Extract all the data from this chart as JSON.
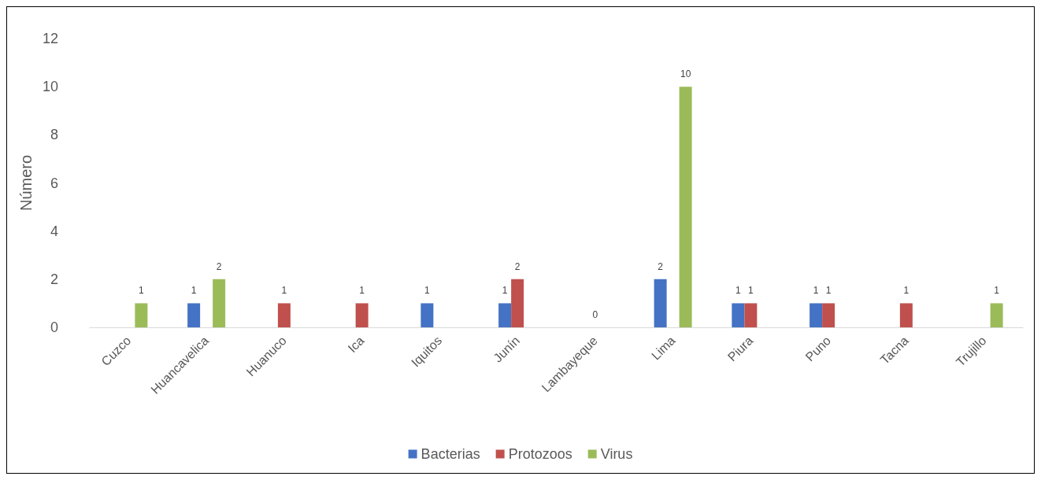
{
  "chart_data": {
    "type": "bar",
    "ylabel": "Número",
    "categories": [
      "Cuzco",
      "Huancavelica",
      "Huanuco",
      "Ica",
      "Iquitos",
      "Junín",
      "Lambayeque",
      "Lima",
      "Piura",
      "Puno",
      "Tacna",
      "Trujillo"
    ],
    "series": [
      {
        "name": "Bacterias",
        "color": "#4472c4",
        "values": [
          null,
          1,
          null,
          null,
          1,
          1,
          null,
          2,
          1,
          1,
          null,
          null
        ],
        "value_labels": [
          null,
          "1",
          null,
          null,
          "1",
          "1",
          null,
          "2",
          "1",
          "1",
          null,
          null
        ]
      },
      {
        "name": "Protozoos",
        "color": "#c0504d",
        "values": [
          null,
          null,
          1,
          1,
          null,
          2,
          0,
          null,
          1,
          1,
          1,
          null
        ],
        "value_labels": [
          null,
          null,
          "1",
          "1",
          null,
          "2",
          "0",
          null,
          "1",
          "1",
          "1",
          null
        ]
      },
      {
        "name": "Virus",
        "color": "#9bbb59",
        "values": [
          1,
          2,
          null,
          null,
          null,
          null,
          null,
          10,
          null,
          null,
          null,
          1
        ],
        "value_labels": [
          "1",
          "2",
          null,
          null,
          null,
          null,
          null,
          "10",
          null,
          null,
          null,
          "1"
        ]
      }
    ],
    "ylim": [
      0,
      12
    ],
    "yticks": [
      0,
      2,
      4,
      6,
      8,
      10,
      12
    ],
    "grid": false,
    "legend": "bottom"
  }
}
